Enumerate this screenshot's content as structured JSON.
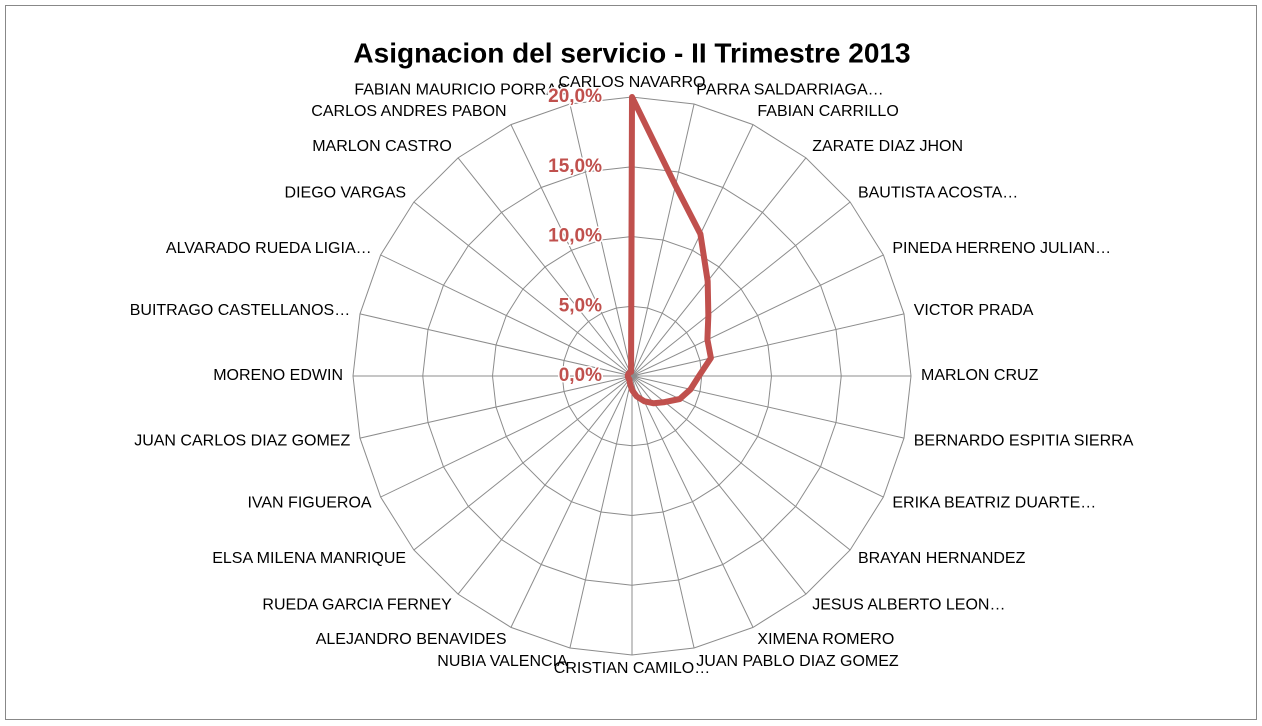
{
  "chart_data": {
    "type": "radar",
    "title": "Asignacion del servicio - II Trimestre 2013",
    "categories": [
      "CARLOS NAVARRO",
      "PARRA SALDARRIAGA…",
      "FABIAN CARRILLO",
      "ZARATE DIAZ JHON",
      "BAUTISTA ACOSTA…",
      "PINEDA HERRENO JULIAN…",
      "VICTOR PRADA",
      "MARLON CRUZ",
      "BERNARDO ESPITIA SIERRA",
      "ERIKA BEATRIZ DUARTE…",
      "BRAYAN HERNANDEZ",
      "JESUS ALBERTO LEON…",
      "XIMENA ROMERO",
      "JUAN PABLO DIAZ GOMEZ",
      "CRISTIAN CAMILO…",
      "NUBIA VALENCIA",
      "ALEJANDRO BENAVIDES",
      "RUEDA GARCIA FERNEY",
      "ELSA MILENA MANRIQUE",
      "IVAN FIGUEROA",
      "JUAN CARLOS DIAZ GOMEZ",
      "MORENO EDWIN",
      "BUITRAGO CASTELLANOS…",
      "ALVARADO RUEDA LIGIA…",
      "DIEGO VARGAS",
      "MARLON CASTRO",
      "CARLOS ANDRES PABON",
      "FABIAN MAURICIO PORRAS"
    ],
    "values": [
      20,
      14,
      11.3,
      8.7,
      7,
      6,
      5.8,
      4.8,
      4.3,
      3.8,
      3,
      2.5,
      2,
      1.5,
      1,
      0.6,
      0.4,
      0.3,
      0.3,
      0.3,
      0.3,
      0.3,
      0.3,
      0.3,
      0.3,
      0.3,
      0.3,
      0.3
    ],
    "color": "#c0504d",
    "ylim": [
      0,
      20
    ],
    "yticks": [
      {
        "value": 0,
        "label": "0,0%"
      },
      {
        "value": 5,
        "label": "5,0%"
      },
      {
        "value": 10,
        "label": "10,0%"
      },
      {
        "value": 15,
        "label": "15,0%"
      },
      {
        "value": 20,
        "label": "20,0%"
      }
    ],
    "grid": true
  }
}
